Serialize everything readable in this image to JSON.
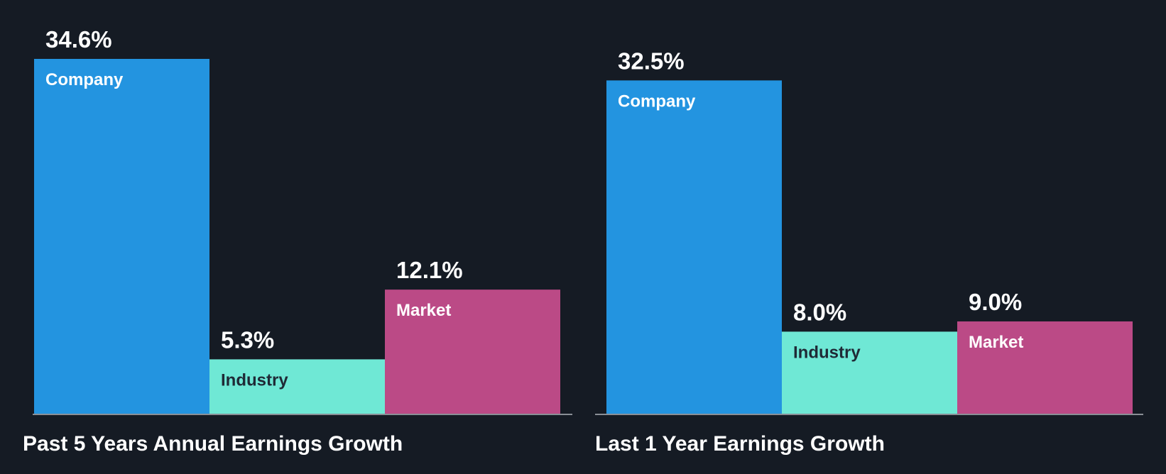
{
  "colors": {
    "background": "#151b24",
    "company": "#2394e0",
    "industry": "#6fe8d5",
    "market": "#bb4a86",
    "axis": "#8a8f96",
    "label_on_dark_bar": "#ffffff",
    "label_on_light_bar": "#1f2a36"
  },
  "chart_data": [
    {
      "type": "bar",
      "title": "Past 5 Years Annual Earnings Growth",
      "categories": [
        "Company",
        "Industry",
        "Market"
      ],
      "values": [
        34.6,
        5.3,
        12.1
      ],
      "value_labels": [
        "34.6%",
        "5.3%",
        "12.1%"
      ],
      "unit": "%",
      "ylim": [
        0,
        34.6
      ],
      "grid": false,
      "legend": "none"
    },
    {
      "type": "bar",
      "title": "Last 1 Year Earnings Growth",
      "categories": [
        "Company",
        "Industry",
        "Market"
      ],
      "values": [
        32.5,
        8.0,
        9.0
      ],
      "value_labels": [
        "32.5%",
        "8.0%",
        "9.0%"
      ],
      "unit": "%",
      "ylim": [
        0,
        34.6
      ],
      "grid": false,
      "legend": "none"
    }
  ]
}
